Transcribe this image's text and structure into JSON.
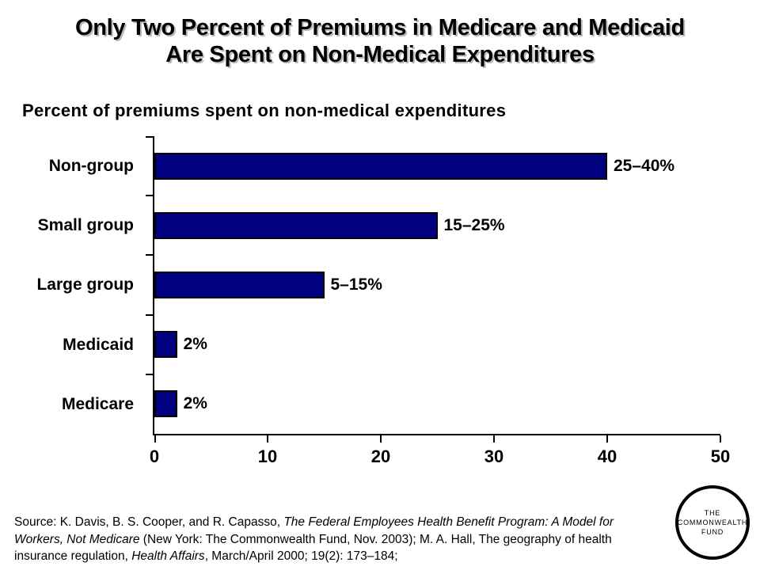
{
  "slide": {
    "title_line1": "Only Two Percent of Premiums in Medicare and Medicaid",
    "title_line2": "Are Spent on Non-Medical Expenditures"
  },
  "chart_data": {
    "type": "bar",
    "orientation": "horizontal",
    "title": "Percent of premiums spent on non-medical expenditures",
    "categories": [
      "Non-group",
      "Small group",
      "Large group",
      "Medicaid",
      "Medicare"
    ],
    "values": [
      40,
      25,
      15,
      2,
      2
    ],
    "value_labels": [
      "25–40%",
      "15–25%",
      "5–15%",
      "2%",
      "2%"
    ],
    "xlim": [
      0,
      50
    ],
    "x_ticks": [
      0,
      10,
      20,
      30,
      40,
      50
    ],
    "bar_color": "#000080",
    "grid": false,
    "legend": false
  },
  "source_note": {
    "lines": [
      [
        {
          "text": "Source: K. Davis, B. S. Cooper, and R. Capasso, ",
          "italic": false
        },
        {
          "text": "The Federal Employees Health Benefit Program: A Model for",
          "italic": true
        }
      ],
      [
        {
          "text": "Workers, Not Medicare",
          "italic": true
        },
        {
          "text": " (New York: The Commonwealth Fund, Nov. 2003); M. A. Hall, The geography of health",
          "italic": false
        }
      ],
      [
        {
          "text": "insurance regulation, ",
          "italic": false
        },
        {
          "text": "Health Affairs",
          "italic": true
        },
        {
          "text": ", March/April 2000; 19(2): 173–184;",
          "italic": false
        }
      ]
    ]
  },
  "logo": {
    "line1": "THE",
    "line2": "COMMONWEALTH",
    "line3": "FUND"
  }
}
